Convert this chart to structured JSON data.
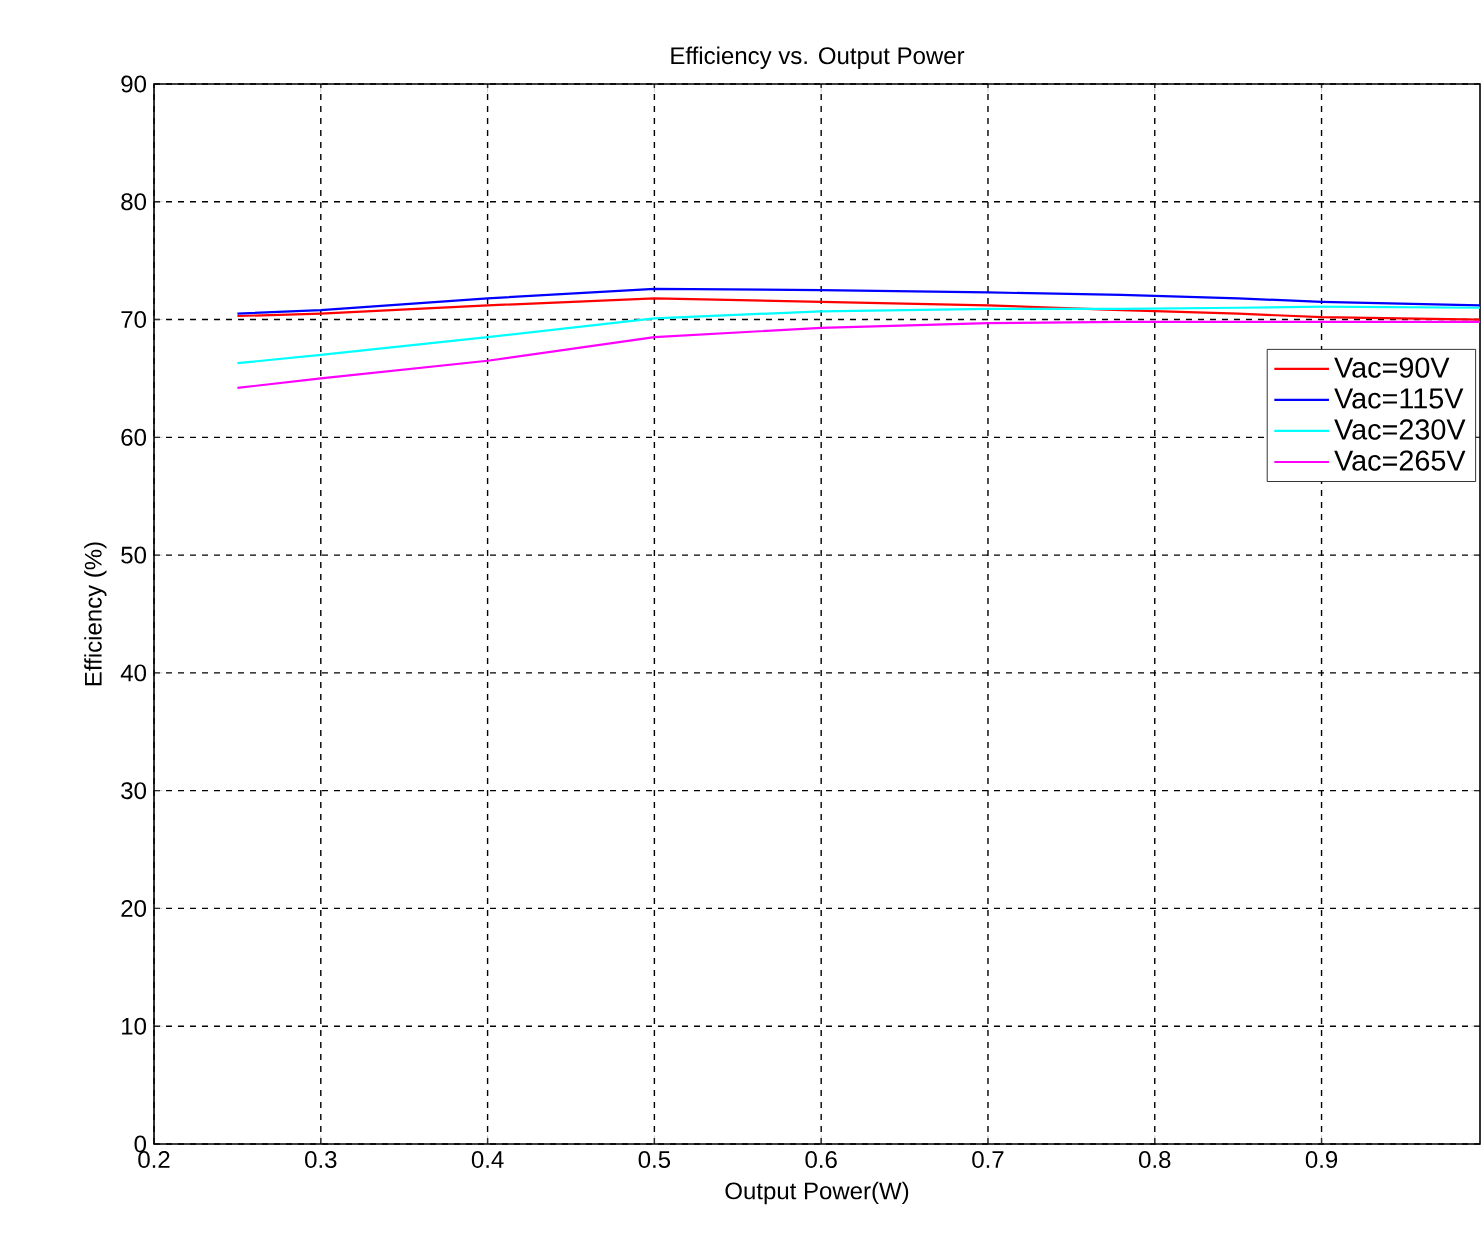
{
  "chart_data": {
    "type": "line",
    "title": "Efficiency vs. Output Power",
    "xlabel": "Output Power(W)",
    "ylabel": "Efficiency (%)",
    "xlim": [
      0.2,
      0.995
    ],
    "ylim": [
      0,
      90
    ],
    "xticks": [
      0.2,
      0.3,
      0.4,
      0.5,
      0.6,
      0.7,
      0.8,
      0.9
    ],
    "yticks": [
      0,
      10,
      20,
      30,
      40,
      50,
      60,
      70,
      80,
      90
    ],
    "grid": true,
    "legend": "right",
    "marker": "none",
    "line_style": "solid",
    "x": [
      0.25,
      0.3,
      0.4,
      0.5,
      0.6,
      0.7,
      0.78,
      0.85,
      0.9,
      0.995
    ],
    "series": [
      {
        "name": "Vac=90V",
        "color": "#ff0000",
        "values": [
          70.3,
          70.5,
          71.2,
          71.8,
          71.5,
          71.2,
          70.8,
          70.5,
          70.2,
          70.0
        ]
      },
      {
        "name": "Vac=115V",
        "color": "#0000ff",
        "values": [
          70.5,
          70.8,
          71.8,
          72.6,
          72.5,
          72.3,
          72.1,
          71.8,
          71.5,
          71.2
        ]
      },
      {
        "name": "Vac=230V",
        "color": "#00ffff",
        "values": [
          66.3,
          67.0,
          68.5,
          70.1,
          70.7,
          70.9,
          70.9,
          71.0,
          71.1,
          71.0
        ]
      },
      {
        "name": "Vac=265V",
        "color": "#ff00ff",
        "values": [
          64.2,
          65.0,
          66.5,
          68.5,
          69.3,
          69.7,
          69.8,
          69.8,
          69.8,
          69.8
        ]
      }
    ]
  }
}
